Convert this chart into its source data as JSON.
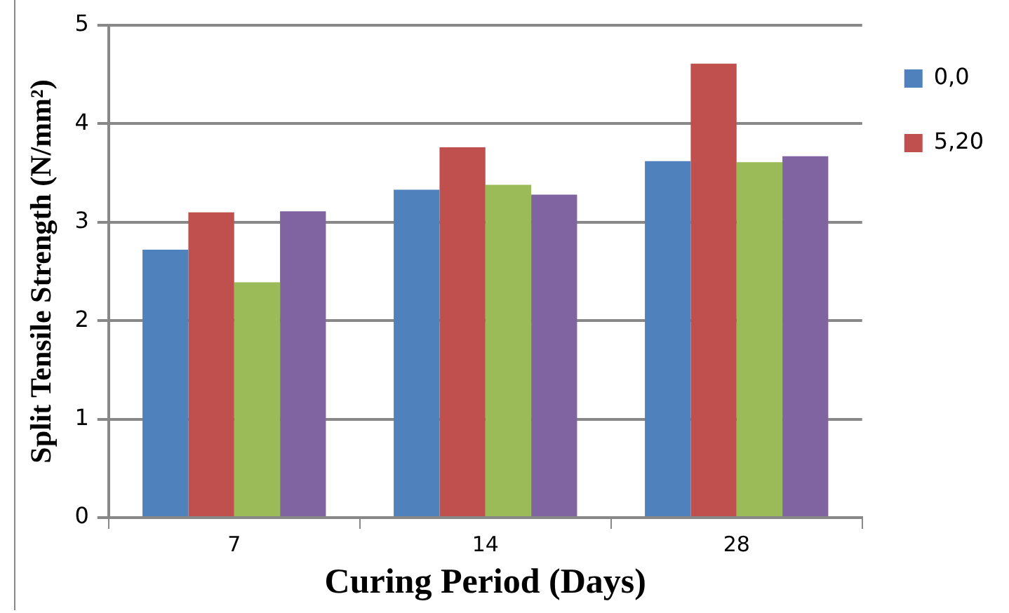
{
  "chart_data": {
    "type": "bar",
    "xlabel": "Curing Period (Days)",
    "ylabel": "Split Tensile Strength (N/mm²)",
    "categories": [
      "7",
      "14",
      "28"
    ],
    "series": [
      {
        "name": "0,0",
        "color": "#4f81bd",
        "values": [
          2.72,
          3.33,
          3.62
        ]
      },
      {
        "name": "5,20",
        "color": "#c0504d",
        "values": [
          3.1,
          3.76,
          4.61
        ]
      },
      {
        "color": "#9bbb59",
        "values": [
          2.39,
          3.38,
          3.61
        ]
      },
      {
        "color": "#8064a2",
        "values": [
          3.11,
          3.28,
          3.67
        ]
      }
    ],
    "ylim": [
      0,
      5
    ],
    "yticks": [
      0,
      1,
      2,
      3,
      4,
      5
    ],
    "grid": "y",
    "legend": "right"
  }
}
